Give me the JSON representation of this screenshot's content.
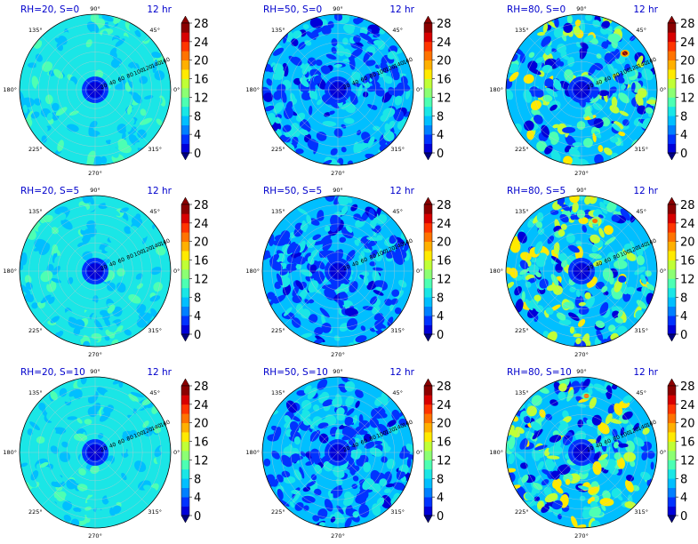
{
  "chart_data": {
    "type": "heatmap",
    "projection": "polar",
    "time_label": "12 hr",
    "theta_ticks": [
      "0°",
      "45°",
      "90°",
      "135°",
      "180°",
      "225°",
      "270°",
      "315°"
    ],
    "r_ticks": [
      "20",
      "40",
      "60",
      "80",
      "100",
      "120",
      "140",
      "160"
    ],
    "rlim": [
      0,
      160
    ],
    "colorbar": {
      "ticks": [
        0,
        4,
        8,
        12,
        16,
        20,
        24,
        28
      ],
      "levels": [
        0,
        2,
        4,
        6,
        8,
        10,
        12,
        14,
        16,
        18,
        20,
        22,
        24,
        26,
        28
      ],
      "colormap": [
        "#00007f",
        "#0000d9",
        "#0033ff",
        "#0080ff",
        "#00bfff",
        "#1ae6e6",
        "#4dffb3",
        "#8cff73",
        "#c0ff36",
        "#ffea00",
        "#ffb000",
        "#ff7300",
        "#ff3500",
        "#d80000",
        "#8b0000"
      ],
      "extend": "both"
    },
    "panels": [
      {
        "title": "RH=20, S=0",
        "rh": 20,
        "s": 0,
        "center_value": 3,
        "background_value": 9.5,
        "hotspots": []
      },
      {
        "title": "RH=50, S=0",
        "rh": 50,
        "s": 0,
        "center_value": 3,
        "background_value": 7.5,
        "hotspots": []
      },
      {
        "title": "RH=80, S=0",
        "rh": 80,
        "s": 0,
        "center_value": 3,
        "background_value": 8,
        "hotspots": [
          {
            "theta": 40,
            "r": 120,
            "value": 27
          }
        ]
      },
      {
        "title": "RH=20, S=5",
        "rh": 20,
        "s": 5,
        "center_value": 3,
        "background_value": 9.5,
        "hotspots": []
      },
      {
        "title": "RH=50, S=5",
        "rh": 50,
        "s": 5,
        "center_value": 3,
        "background_value": 7.5,
        "hotspots": []
      },
      {
        "title": "RH=80, S=5",
        "rh": 80,
        "s": 5,
        "center_value": 3,
        "background_value": 8,
        "hotspots": [
          {
            "theta": 75,
            "r": 110,
            "value": 22
          }
        ]
      },
      {
        "title": "RH=20, S=10",
        "rh": 20,
        "s": 10,
        "center_value": 3,
        "background_value": 9.5,
        "hotspots": []
      },
      {
        "title": "RH=50, S=10",
        "rh": 50,
        "s": 10,
        "center_value": 3,
        "background_value": 7.5,
        "hotspots": []
      },
      {
        "title": "RH=80, S=10",
        "rh": 80,
        "s": 10,
        "center_value": 3,
        "background_value": 8,
        "hotspots": [
          {
            "theta": 85,
            "r": 120,
            "value": 21
          }
        ]
      }
    ]
  }
}
